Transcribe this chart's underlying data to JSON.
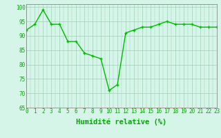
{
  "x": [
    0,
    1,
    2,
    3,
    4,
    5,
    6,
    7,
    8,
    9,
    10,
    11,
    12,
    13,
    14,
    15,
    16,
    17,
    18,
    19,
    20,
    21,
    22,
    23
  ],
  "y": [
    92,
    94,
    99,
    94,
    94,
    88,
    88,
    84,
    83,
    82,
    71,
    73,
    91,
    92,
    93,
    93,
    94,
    95,
    94,
    94,
    94,
    93,
    93,
    93
  ],
  "line_color": "#00bb00",
  "marker": "+",
  "bg_color": "#d5f5e8",
  "grid_color": "#a0ccb8",
  "xlabel": "Humidité relative (%)",
  "xlabel_color": "#00aa00",
  "ylim": [
    65,
    101
  ],
  "xlim": [
    0,
    23
  ],
  "yticks": [
    65,
    70,
    75,
    80,
    85,
    90,
    95,
    100
  ],
  "xticks": [
    0,
    1,
    2,
    3,
    4,
    5,
    6,
    7,
    8,
    9,
    10,
    11,
    12,
    13,
    14,
    15,
    16,
    17,
    18,
    19,
    20,
    21,
    22,
    23
  ],
  "tick_color": "#00aa00",
  "tick_fontsize": 5.5,
  "xlabel_fontsize": 7.5,
  "linewidth": 1.0,
  "marker_size": 3,
  "marker_edge_width": 1.0,
  "spine_color": "#777777"
}
